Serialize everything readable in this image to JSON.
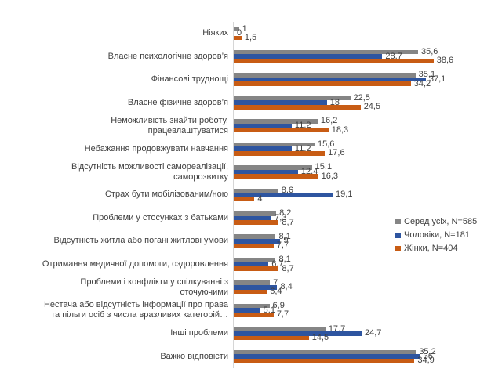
{
  "chart_data": {
    "type": "bar",
    "orientation": "horizontal",
    "title": "",
    "xlabel": "",
    "ylabel": "",
    "xlim": [
      0,
      45
    ],
    "grid": false,
    "legend_position": "right",
    "decimal_separator": ",",
    "categories": [
      "Ніяких",
      "Власне психологічне здоров’я",
      "Фінансові труднощі",
      "Власне фізичне здоров’я",
      "Неможливість знайти роботу,\nпрацевлаштуватися",
      "Небажання продовжувати навчання",
      "Відсутність можливості самореалізації,\nсаморозвитку",
      "Страх бути мобілізованим/ною",
      "Проблеми у стосунках з батьками",
      "Відсутність житла або погані житлові умови",
      "Отримання медичної допомоги, оздоровлення",
      "Проблеми і конфлікти у спілкуванні з\nоточуючими",
      "Нестача або відсутність інформації про права\nта пільги осіб з числа вразливих категорій…",
      "Інші проблеми",
      "Важко відповісти"
    ],
    "series": [
      {
        "name": "Серед усіх, N=585",
        "color": "#858585",
        "values": [
          1,
          35.6,
          35.1,
          22.5,
          16.2,
          15.6,
          15.1,
          8.6,
          8.2,
          8.1,
          8.1,
          7,
          6.9,
          17.7,
          35.2
        ]
      },
      {
        "name": "Чоловіки, N=181",
        "color": "#2e55a0",
        "values": [
          0,
          28.7,
          37.1,
          18,
          11.2,
          11.2,
          12.4,
          19.1,
          7.3,
          9,
          6.7,
          8.4,
          5.1,
          24.7,
          36
        ]
      },
      {
        "name": "Жінки, N=404",
        "color": "#c85c14",
        "values": [
          1.5,
          38.6,
          34.2,
          24.5,
          18.3,
          17.6,
          16.3,
          4,
          8.7,
          7.7,
          8.7,
          6.4,
          7.7,
          14.5,
          34.9
        ]
      }
    ]
  }
}
